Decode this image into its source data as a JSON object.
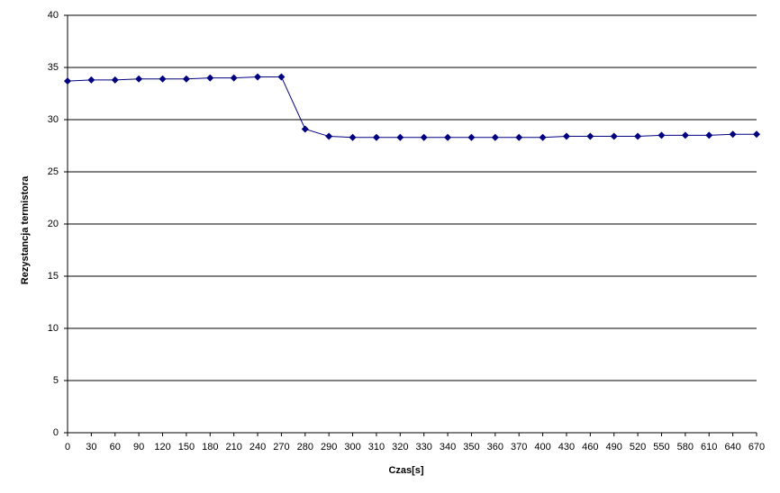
{
  "chart_data": {
    "type": "line",
    "x_label": "Czas[s]",
    "y_label": "Rezystancja termistora",
    "categories": [
      "0",
      "30",
      "60",
      "90",
      "120",
      "150",
      "180",
      "210",
      "240",
      "270",
      "280",
      "290",
      "300",
      "310",
      "320",
      "330",
      "340",
      "350",
      "360",
      "370",
      "400",
      "430",
      "460",
      "490",
      "520",
      "550",
      "580",
      "610",
      "640",
      "670"
    ],
    "values": [
      33.7,
      33.8,
      33.8,
      33.9,
      33.9,
      33.9,
      34.0,
      34.0,
      34.1,
      34.1,
      29.1,
      28.4,
      28.3,
      28.3,
      28.3,
      28.3,
      28.3,
      28.3,
      28.3,
      28.3,
      28.3,
      28.4,
      28.4,
      28.4,
      28.4,
      28.5,
      28.5,
      28.5,
      28.6,
      28.6
    ],
    "color": "#000080",
    "ylim": [
      0,
      40
    ],
    "yticks": [
      0,
      5,
      10,
      15,
      20,
      25,
      30,
      35,
      40
    ],
    "grid": true
  }
}
